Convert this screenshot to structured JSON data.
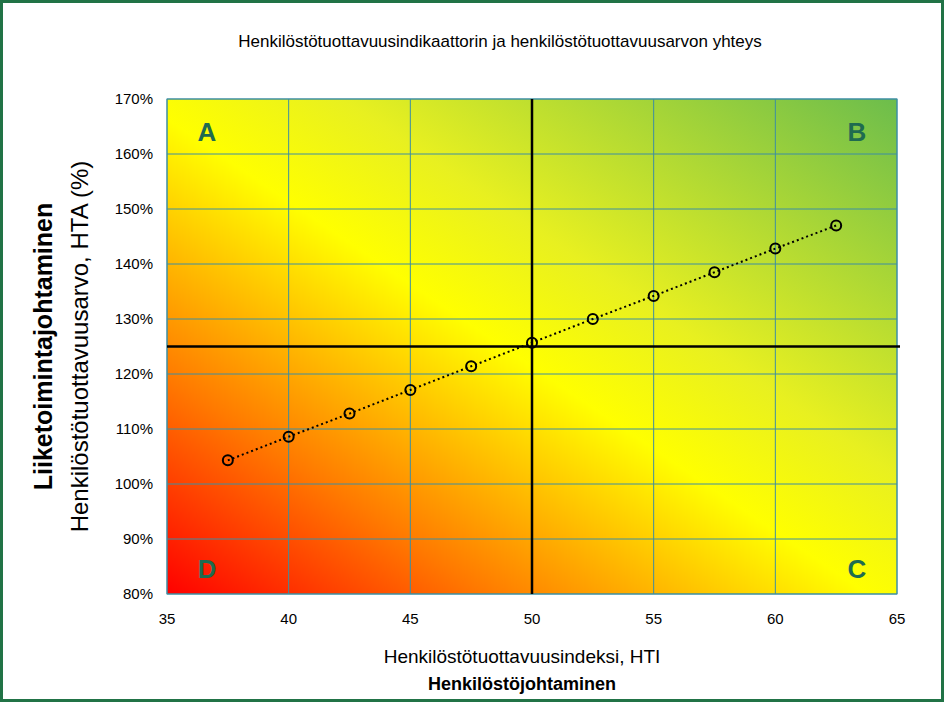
{
  "chart_data": {
    "type": "line",
    "title": "Henkilöstötuottavuusindikaattorin ja henkilöstötuottavuusarvon yhteys",
    "xlabel": "Henkilöstötuottavuusindeksi, HTI",
    "xlabel_group": "Henkilöstöjohtaminen",
    "ylabel": "Henkilöstötuottavuusarvo, HTA (%)",
    "ylabel_group": "Liiketoimintajohtaminen",
    "x": [
      37.5,
      40,
      42.5,
      45,
      47.5,
      50,
      52.5,
      55,
      57.5,
      60,
      62.5
    ],
    "values": [
      104.3,
      108.6,
      112.8,
      117.1,
      121.4,
      125.7,
      130.0,
      134.2,
      138.5,
      142.8,
      147.0
    ],
    "color": "#000000",
    "marker": "circle",
    "line_style": "dotted",
    "xlim": [
      35,
      65
    ],
    "xticks": [
      35,
      40,
      45,
      50,
      55,
      60,
      65
    ],
    "ylim": [
      80,
      170
    ],
    "yticks": [
      {
        "value": 80,
        "label": "80%"
      },
      {
        "value": 90,
        "label": "90%"
      },
      {
        "value": 100,
        "label": "100%"
      },
      {
        "value": 110,
        "label": "110%"
      },
      {
        "value": 120,
        "label": "120%"
      },
      {
        "value": 130,
        "label": "130%"
      },
      {
        "value": 140,
        "label": "140%"
      },
      {
        "value": 150,
        "label": "150%"
      },
      {
        "value": 160,
        "label": "160%"
      },
      {
        "value": 170,
        "label": "170%"
      }
    ],
    "grid": true,
    "reference_lines": {
      "x": 50,
      "y": 125
    },
    "quadrant_labels": [
      "A",
      "B",
      "C",
      "D"
    ]
  }
}
